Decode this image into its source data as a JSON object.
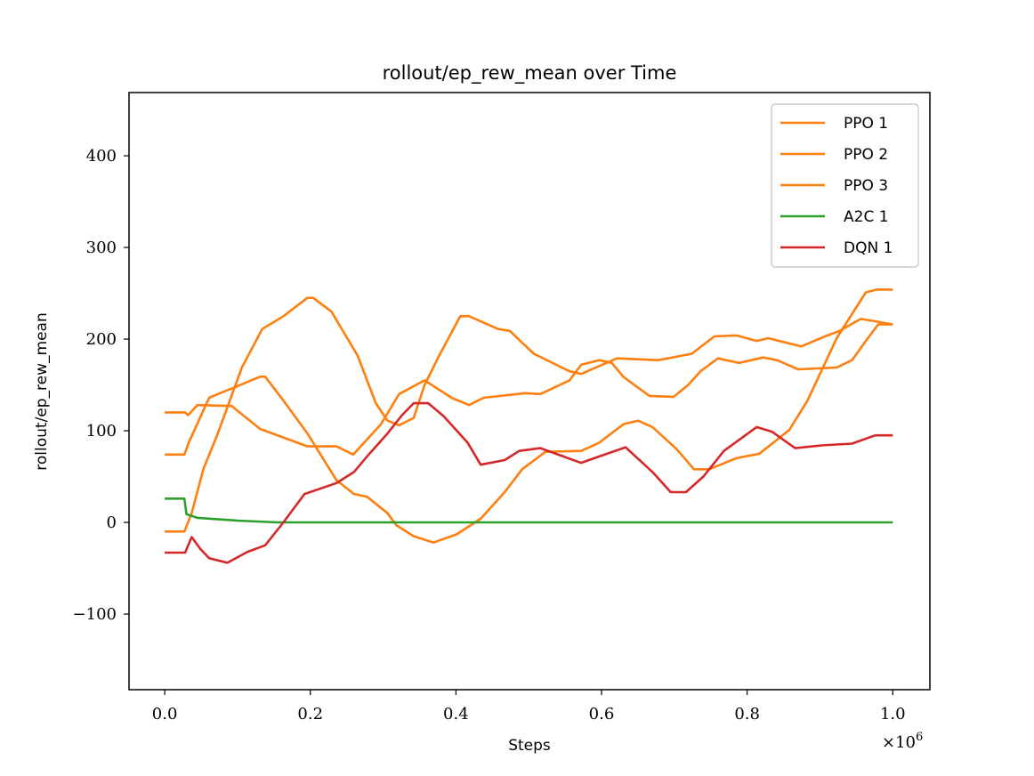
{
  "chart_data": {
    "type": "line",
    "title": "rollout/ep_rew_mean over Time",
    "xlabel": "Steps",
    "ylabel": "rollout/ep_rew_mean",
    "x_multiplier": "×10",
    "x_multiplier_exp": "6",
    "xlim": [
      -0.049,
      1.051
    ],
    "ylim": [
      -182.5,
      469
    ],
    "xticks": [
      0.0,
      0.2,
      0.4,
      0.6,
      0.8,
      1.0
    ],
    "xtick_labels": [
      "0.0",
      "0.2",
      "0.4",
      "0.6",
      "0.8",
      "1.0"
    ],
    "yticks": [
      -100,
      0,
      100,
      200,
      300,
      400
    ],
    "ytick_labels": [
      "−100",
      "0",
      "100",
      "200",
      "300",
      "400"
    ],
    "grid": false,
    "legend_position": "top-right",
    "series": [
      {
        "name": "PPO 1",
        "color": "#ff7f0e",
        "x": [
          0,
          0.028,
          0.032,
          0.045,
          0.092,
          0.131,
          0.196,
          0.236,
          0.259,
          0.297,
          0.322,
          0.357,
          0.394,
          0.418,
          0.438,
          0.495,
          0.516,
          0.556,
          0.572,
          0.597,
          0.614,
          0.63,
          0.645,
          0.666,
          0.699,
          0.719,
          0.736,
          0.76,
          0.789,
          0.822,
          0.841,
          0.87,
          0.923,
          0.944,
          0.963,
          0.98,
          1.0
        ],
        "y": [
          120,
          120,
          117,
          128,
          127,
          102,
          83,
          83,
          74,
          107,
          140,
          155,
          136,
          128,
          136,
          141,
          140,
          155,
          172,
          177,
          174,
          159,
          150,
          138,
          137,
          150,
          165,
          179,
          174,
          180,
          177,
          167,
          169,
          177,
          198,
          216,
          216
        ]
      },
      {
        "name": "PPO 2",
        "color": "#ff7f0e",
        "x": [
          0,
          0.027,
          0.033,
          0.061,
          0.073,
          0.098,
          0.131,
          0.138,
          0.163,
          0.196,
          0.236,
          0.26,
          0.278,
          0.306,
          0.318,
          0.342,
          0.369,
          0.401,
          0.434,
          0.467,
          0.491,
          0.523,
          0.572,
          0.597,
          0.63,
          0.65,
          0.67,
          0.703,
          0.727,
          0.748,
          0.785,
          0.817,
          0.858,
          0.883,
          0.923,
          0.963,
          0.978,
          1.0
        ],
        "y": [
          74,
          74,
          87,
          136,
          140,
          148,
          159,
          159,
          133,
          97,
          46,
          31,
          28,
          10,
          -3,
          -15,
          -22,
          -13,
          4,
          33,
          58,
          77,
          78,
          87,
          107,
          111,
          104,
          80,
          58,
          58,
          70,
          75,
          101,
          133,
          201,
          251,
          254,
          254
        ]
      },
      {
        "name": "PPO 3",
        "color": "#ff7f0e",
        "x": [
          0,
          0.027,
          0.037,
          0.053,
          0.073,
          0.106,
          0.134,
          0.163,
          0.196,
          0.204,
          0.229,
          0.265,
          0.29,
          0.306,
          0.322,
          0.342,
          0.357,
          0.377,
          0.406,
          0.418,
          0.458,
          0.474,
          0.507,
          0.556,
          0.572,
          0.621,
          0.678,
          0.724,
          0.755,
          0.785,
          0.813,
          0.829,
          0.874,
          0.907,
          0.927,
          0.956,
          0.972,
          1.0
        ],
        "y": [
          -10,
          -10,
          10,
          58,
          97,
          169,
          211,
          225,
          245,
          245,
          230,
          182,
          130,
          111,
          106,
          114,
          150,
          182,
          225,
          225,
          211,
          209,
          184,
          165,
          162,
          179,
          177,
          184,
          203,
          204,
          198,
          201,
          192,
          203,
          209,
          222,
          220,
          216
        ]
      },
      {
        "name": "A2C 1",
        "color": "#2ca02c",
        "x": [
          0,
          0.027,
          0.03,
          0.045,
          0.1,
          0.155,
          0.4,
          0.7,
          1.0
        ],
        "y": [
          26,
          26,
          9,
          5,
          2,
          0,
          0,
          0,
          0
        ]
      },
      {
        "name": "DQN 1",
        "color": "#d62728",
        "x": [
          0,
          0.028,
          0.037,
          0.049,
          0.061,
          0.086,
          0.114,
          0.138,
          0.163,
          0.192,
          0.236,
          0.26,
          0.278,
          0.306,
          0.326,
          0.342,
          0.362,
          0.383,
          0.416,
          0.434,
          0.467,
          0.487,
          0.516,
          0.572,
          0.597,
          0.633,
          0.67,
          0.695,
          0.716,
          0.74,
          0.768,
          0.813,
          0.834,
          0.866,
          0.902,
          0.944,
          0.976,
          1.0
        ],
        "y": [
          -33,
          -33,
          -16,
          -29,
          -39,
          -44,
          -32,
          -25,
          0,
          31,
          43,
          55,
          72,
          97,
          117,
          130,
          130,
          116,
          87,
          63,
          68,
          78,
          81,
          65,
          72,
          82,
          55,
          33,
          33,
          50,
          78,
          104,
          99,
          81,
          84,
          86,
          95,
          95
        ]
      }
    ]
  }
}
